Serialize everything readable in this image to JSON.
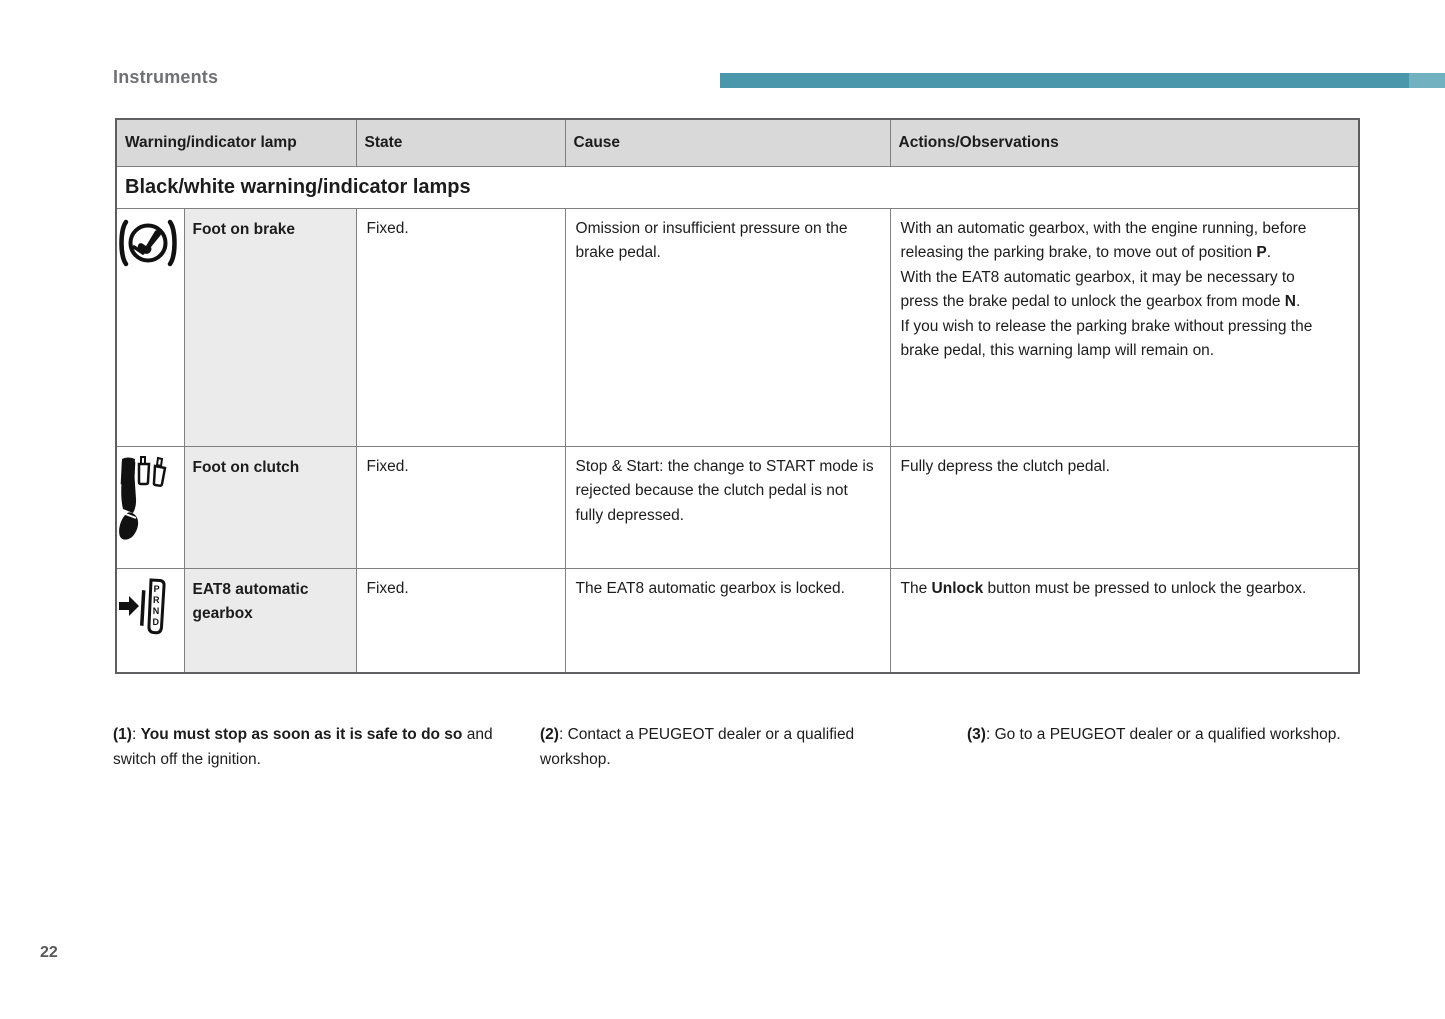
{
  "page": {
    "heading": "Instruments",
    "page_number": "22"
  },
  "colors": {
    "accent_bar": "#4a97ab",
    "accent_bar_end": "#72b1c0",
    "header_bg": "#d9d9d9",
    "label_bg": "#ebebeb",
    "grid_line": "#808080",
    "heading_text": "#707174"
  },
  "table": {
    "columns": {
      "lamp": "Warning/indicator lamp",
      "state": "State",
      "cause": "Cause",
      "actions": "Actions/Observations"
    },
    "section_title": "Black/white warning/indicator lamps",
    "rows": [
      {
        "icon": "foot-on-brake-icon",
        "label": "Foot on brake",
        "state": "Fixed.",
        "cause": "Omission or insufficient pressure on the brake pedal.",
        "actions": [
          [
            {
              "text": "With an automatic gearbox, with the engine running, before releasing the parking brake, to move out of position "
            },
            {
              "text": "P",
              "bold": true
            },
            {
              "text": "."
            }
          ],
          [
            {
              "text": "With the EAT8 automatic gearbox, it may be necessary to press the brake pedal to unlock the gearbox from mode "
            },
            {
              "text": "N",
              "bold": true
            },
            {
              "text": "."
            }
          ],
          [
            {
              "text": "If you wish to release the parking brake without pressing the brake pedal, this warning lamp will remain on."
            }
          ]
        ]
      },
      {
        "icon": "foot-on-clutch-icon",
        "label": "Foot on clutch",
        "state": "Fixed.",
        "cause": "Stop & Start: the change to START mode is rejected because the clutch pedal is not fully depressed.",
        "actions": [
          [
            {
              "text": "Fully depress the clutch pedal."
            }
          ]
        ]
      },
      {
        "icon": "eat8-gearbox-icon",
        "label": "EAT8 automatic gearbox",
        "state": "Fixed.",
        "cause": "The EAT8 automatic gearbox is locked.",
        "actions": [
          [
            {
              "text": "The "
            },
            {
              "text": "Unlock",
              "bold": true
            },
            {
              "text": " button must be pressed to unlock the gearbox."
            }
          ]
        ]
      }
    ]
  },
  "icons": {
    "gear_letters": [
      "P",
      "R",
      "N",
      "D"
    ]
  },
  "footnotes": [
    [
      {
        "text": "(1)",
        "bold": true
      },
      {
        "text": ": "
      },
      {
        "text": "You must stop as soon as it is safe to do so",
        "bold": true
      },
      {
        "text": " and switch off the ignition."
      }
    ],
    [
      {
        "text": "(2)",
        "bold": true
      },
      {
        "text": ": Contact a PEUGEOT dealer or a qualified workshop."
      }
    ],
    [
      {
        "text": "(3)",
        "bold": true
      },
      {
        "text": ": Go to a PEUGEOT dealer or a qualified workshop."
      }
    ]
  ]
}
